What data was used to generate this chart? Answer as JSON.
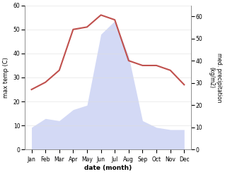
{
  "months": [
    "Jan",
    "Feb",
    "Mar",
    "Apr",
    "May",
    "Jun",
    "Jul",
    "Aug",
    "Sep",
    "Oct",
    "Nov",
    "Dec"
  ],
  "temperature": [
    25,
    28,
    33,
    50,
    51,
    56,
    54,
    37,
    35,
    35,
    33,
    27
  ],
  "precipitation": [
    10,
    14,
    13,
    18,
    20,
    52,
    58,
    42,
    13,
    10,
    9,
    9
  ],
  "temp_color": "#c0504d",
  "precip_color": "#b0bbee",
  "precip_fill_alpha": 0.55,
  "ylabel_left": "max temp (C)",
  "ylabel_right": "med. precipitation\n(kg/m2)",
  "xlabel": "date (month)",
  "ylim_left": [
    0,
    60
  ],
  "ylim_right": [
    0,
    65
  ],
  "yticks_left": [
    0,
    10,
    20,
    30,
    40,
    50,
    60
  ],
  "yticks_right": [
    0,
    10,
    20,
    30,
    40,
    50,
    60
  ],
  "bg_color": "#ffffff",
  "line_width": 1.5,
  "figsize": [
    3.18,
    2.47
  ],
  "dpi": 100
}
